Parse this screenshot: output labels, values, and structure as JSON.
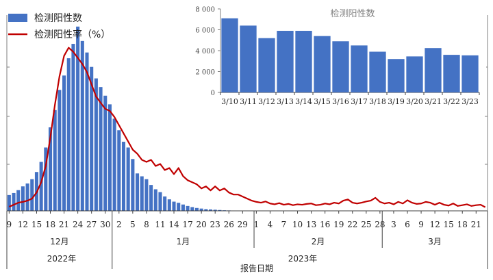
{
  "chart_data": [
    {
      "type": "bar+line",
      "legend": {
        "position": "top-left",
        "entries": [
          "检测阳性数",
          "检测阳性率（%）"
        ]
      },
      "xlabel": "报告日期",
      "colors": {
        "bar": "#4472C4",
        "line": "#C00000"
      },
      "x_tick_labels": [
        "9",
        "12",
        "15",
        "18",
        "21",
        "24",
        "27",
        "30",
        "2",
        "5",
        "8",
        "11",
        "14",
        "17",
        "20",
        "23",
        "26",
        "29",
        "1",
        "4",
        "7",
        "10",
        "13",
        "16",
        "19",
        "22",
        "25",
        "28",
        "3",
        "6",
        "9",
        "12",
        "15",
        "18",
        "21"
      ],
      "month_groups": [
        {
          "label": "12月",
          "days": 23
        },
        {
          "label": "1月",
          "days": 31
        },
        {
          "label": "2月",
          "days": 28
        },
        {
          "label": "3月",
          "days": 23
        }
      ],
      "year_groups": [
        {
          "label": "2022年",
          "days": 23
        },
        {
          "label": "2023年",
          "days": 82
        }
      ],
      "series": [
        {
          "name": "检测阳性数",
          "type": "bar",
          "values": [
            550,
            620,
            720,
            850,
            950,
            1100,
            1350,
            1700,
            2200,
            2900,
            3500,
            4200,
            4700,
            5300,
            5800,
            6400,
            5900,
            5500,
            5000,
            4600,
            4300,
            4000,
            3700,
            3200,
            2800,
            2400,
            2200,
            1800,
            1300,
            1200,
            1100,
            900,
            750,
            650,
            500,
            400,
            320,
            280,
            220,
            170,
            130,
            100,
            80,
            60,
            50,
            40,
            30,
            20,
            15,
            10,
            8,
            5,
            5,
            0,
            0,
            0,
            0,
            0,
            0,
            0,
            0,
            0,
            0,
            0,
            0,
            0,
            0,
            0,
            0,
            0,
            0,
            0,
            0,
            0,
            0,
            0,
            0,
            0,
            0,
            0,
            0,
            0,
            0,
            0,
            0,
            0,
            0,
            0,
            0,
            0,
            0,
            0,
            0,
            0,
            0,
            0,
            0,
            0,
            0,
            0,
            0,
            0,
            0,
            0,
            0
          ]
        },
        {
          "name": "检测阳性率（%）",
          "type": "line",
          "values": [
            1.0,
            1.5,
            2.0,
            2.2,
            2.5,
            3.0,
            4.5,
            7.0,
            11.0,
            18.0,
            26.0,
            33.0,
            38.0,
            40.0,
            39.0,
            37.5,
            36.0,
            34.0,
            31.0,
            28.0,
            26.5,
            25.0,
            24.5,
            23.0,
            21.0,
            19.0,
            17.0,
            15.0,
            14.0,
            12.5,
            12.0,
            12.5,
            11.0,
            11.5,
            10.0,
            10.5,
            9.0,
            10.5,
            8.5,
            7.5,
            7.0,
            6.5,
            5.5,
            6.0,
            5.0,
            6.0,
            5.0,
            5.5,
            4.5,
            4.0,
            4.0,
            3.5,
            3.0,
            2.5,
            2.2,
            2.0,
            2.3,
            1.8,
            1.6,
            1.9,
            1.5,
            1.7,
            1.4,
            1.6,
            1.5,
            1.7,
            1.8,
            1.4,
            1.5,
            1.8,
            1.6,
            2.0,
            1.8,
            2.5,
            2.8,
            2.0,
            1.8,
            2.0,
            2.3,
            2.5,
            3.2,
            2.2,
            1.8,
            2.0,
            1.6,
            2.2,
            1.8,
            2.6,
            2.0,
            1.7,
            1.8,
            2.2,
            2.0,
            1.5,
            2.0,
            1.5,
            1.3,
            1.8,
            1.2,
            1.4,
            1.6,
            1.2,
            1.4,
            1.5,
            0.9
          ]
        }
      ]
    },
    {
      "type": "bar",
      "title": "检测阳性数",
      "categories": [
        "3/10",
        "3/11",
        "3/12",
        "3/13",
        "3/14",
        "3/15",
        "3/16",
        "3/17",
        "3/18",
        "3/19",
        "3/20",
        "3/21",
        "3/22",
        "3/23"
      ],
      "values": [
        7100,
        6400,
        5200,
        5900,
        5900,
        5400,
        4900,
        4500,
        3900,
        3200,
        3450,
        4250,
        3600,
        3550
      ],
      "ylim": [
        0,
        8000
      ],
      "y_tick_labels": [
        "8 000",
        "6 000",
        "4 000",
        "2 000",
        "0"
      ],
      "color": "#4472C4"
    }
  ]
}
